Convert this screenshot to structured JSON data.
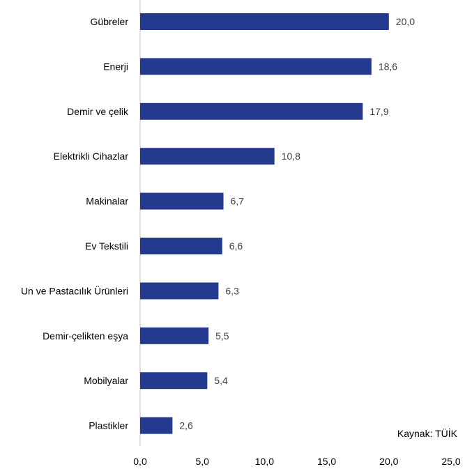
{
  "chart_data": {
    "type": "bar",
    "orientation": "horizontal",
    "categories": [
      "Gübreler",
      "Enerji",
      "Demir ve çelik",
      "Elektrikli Cihazlar",
      "Makinalar",
      "Ev Tekstili",
      "Un ve Pastacılık Ürünleri",
      "Demir-çelikten eşya",
      "Mobilyalar",
      "Plastikler"
    ],
    "values": [
      20.0,
      18.6,
      17.9,
      10.8,
      6.7,
      6.6,
      6.3,
      5.5,
      5.4,
      2.6
    ],
    "value_labels": [
      "20,0",
      "18,6",
      "17,9",
      "10,8",
      "6,7",
      "6,6",
      "6,3",
      "5,5",
      "5,4",
      "2,6"
    ],
    "xlim": [
      0,
      25
    ],
    "x_ticks": [
      0,
      5,
      10,
      15,
      20,
      25
    ],
    "x_tick_labels": [
      "0,0",
      "5,0",
      "10,0",
      "15,0",
      "20,0",
      "25,0"
    ],
    "title": "",
    "xlabel": "",
    "ylabel": "",
    "grid": false,
    "legend": "none",
    "bar_color": "#233a8f",
    "source": "Kaynak: TÜİK"
  }
}
